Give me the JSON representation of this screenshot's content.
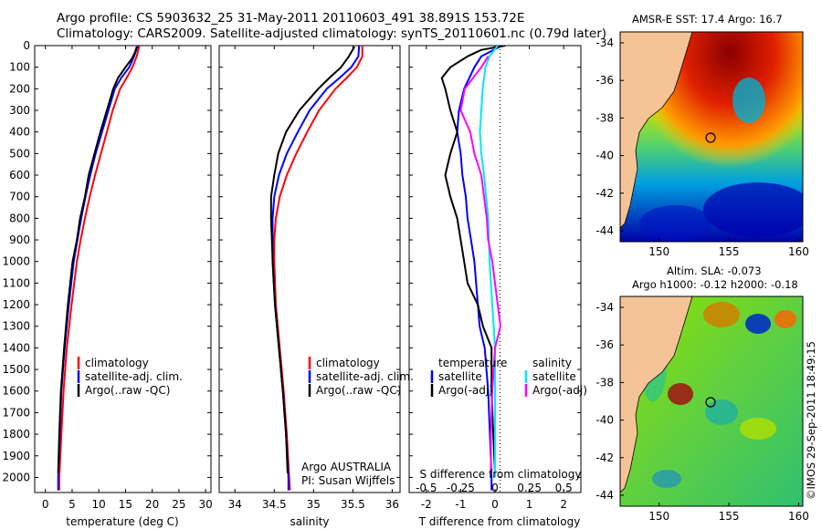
{
  "header": {
    "line1": "Argo profile: CS 5903632_25 31-May-2011 20110603_491 38.891S 153.72E",
    "line2": "Climatology: CARS2009. Satellite-adjusted climatology: synTS_20110601.nc (0.79d later)"
  },
  "map_sst": {
    "title": "AMSR-E SST: 17.4 Argo: 16.7",
    "lat_ticks": [
      "-34",
      "-36",
      "-38",
      "-40",
      "-42",
      "-44"
    ],
    "lon_ticks": [
      "150",
      "155",
      "160"
    ],
    "float_position": {
      "lon": 153.72,
      "lat": -38.891
    }
  },
  "map_sla": {
    "title1": "Altim. SLA: -0.073",
    "title2": "Argo h1000: -0.12 h2000: -0.18",
    "lat_ticks": [
      "-34",
      "-36",
      "-38",
      "-40",
      "-42",
      "-44"
    ],
    "lon_ticks": [
      "150",
      "155",
      "160"
    ],
    "float_position": {
      "lon": 153.72,
      "lat": -38.891
    }
  },
  "stamp": "©IMOS 29-Sep-2011 18:49:15",
  "colors": {
    "climatology": "#ff0000",
    "satellite": "#0000ff",
    "argo": "#000000",
    "sal_satellite": "#00e5ff",
    "sal_argo": "#ff00ff",
    "land": "#f4c396"
  },
  "chart_data": [
    {
      "type": "line",
      "xlabel": "temperature (deg C)",
      "ylabel": "",
      "xlim": [
        -2,
        31
      ],
      "ylim": [
        2070,
        0
      ],
      "xticks": [
        "0",
        "5",
        "10",
        "15",
        "20",
        "25",
        "30"
      ],
      "yticks": [
        "0",
        "100",
        "200",
        "300",
        "400",
        "500",
        "600",
        "700",
        "800",
        "900",
        "1000",
        "1100",
        "1200",
        "1300",
        "1400",
        "1500",
        "1600",
        "1700",
        "1800",
        "1900",
        "2000"
      ],
      "legend": [
        "climatology",
        "satellite-adj. clim.",
        "Argo(..raw -QC)"
      ],
      "series": [
        {
          "name": "climatology",
          "depth": [
            0,
            50,
            100,
            150,
            200,
            300,
            400,
            500,
            600,
            700,
            800,
            900,
            1000,
            1200,
            1400,
            1600,
            1800,
            2000,
            2060
          ],
          "values": [
            17.6,
            17.1,
            16.3,
            15.2,
            14.0,
            12.6,
            11.5,
            10.4,
            9.3,
            8.3,
            7.4,
            6.6,
            5.9,
            4.9,
            4.0,
            3.4,
            3.0,
            2.6,
            2.6
          ]
        },
        {
          "name": "satellite-adj. clim.",
          "depth": [
            0,
            50,
            100,
            150,
            200,
            300,
            400,
            500,
            600,
            700,
            800,
            900,
            1000,
            1200,
            1400,
            1600,
            1800,
            2000,
            2060
          ],
          "values": [
            17.3,
            16.6,
            15.7,
            14.2,
            13.0,
            11.8,
            10.6,
            9.4,
            8.4,
            7.5,
            6.7,
            6.0,
            5.3,
            4.4,
            3.6,
            3.0,
            2.7,
            2.4,
            2.4
          ]
        },
        {
          "name": "Argo(..raw -QC)",
          "depth": [
            5,
            30,
            60,
            100,
            150,
            200,
            300,
            400,
            500,
            600,
            700,
            800,
            900,
            1000,
            1200,
            1400,
            1600,
            1800,
            1980
          ],
          "values": [
            17.1,
            16.8,
            16.2,
            15.0,
            13.6,
            12.7,
            11.5,
            10.3,
            9.2,
            8.1,
            7.4,
            6.5,
            5.9,
            5.1,
            4.2,
            3.5,
            2.9,
            2.6,
            2.4
          ]
        }
      ]
    },
    {
      "type": "line",
      "xlabel": "salinity",
      "xlim": [
        33.8,
        36.1
      ],
      "ylim": [
        2070,
        0
      ],
      "xticks": [
        "34",
        "34.5",
        "35",
        "35.5",
        "36"
      ],
      "legend": [
        "climatology",
        "satellite-adj. clim.",
        "Argo(..raw -QC)"
      ],
      "annotation1": "Argo AUSTRALIA",
      "annotation2": "PI: Susan Wijffels",
      "series": [
        {
          "name": "climatology",
          "depth": [
            0,
            50,
            100,
            150,
            200,
            300,
            400,
            500,
            600,
            700,
            800,
            900,
            1000,
            1200,
            1400,
            1600,
            1800,
            2000,
            2060
          ],
          "values": [
            35.62,
            35.62,
            35.55,
            35.42,
            35.28,
            35.07,
            34.92,
            34.78,
            34.66,
            34.57,
            34.52,
            34.5,
            34.5,
            34.52,
            34.57,
            34.62,
            34.66,
            34.69,
            34.7
          ]
        },
        {
          "name": "satellite-adj. clim.",
          "depth": [
            0,
            50,
            100,
            150,
            200,
            300,
            400,
            500,
            600,
            700,
            800,
            900,
            1000,
            1200,
            1400,
            1600,
            1800,
            2000,
            2060
          ],
          "values": [
            35.58,
            35.57,
            35.48,
            35.33,
            35.17,
            34.95,
            34.8,
            34.66,
            34.56,
            34.5,
            34.48,
            34.48,
            34.48,
            34.51,
            34.56,
            34.61,
            34.65,
            34.68,
            34.68
          ]
        },
        {
          "name": "Argo(..raw -QC)",
          "depth": [
            5,
            50,
            100,
            150,
            200,
            300,
            400,
            500,
            600,
            700,
            800,
            900,
            1000,
            1200,
            1400,
            1600,
            1800,
            1980
          ],
          "values": [
            35.52,
            35.45,
            35.35,
            35.2,
            35.06,
            34.82,
            34.65,
            34.55,
            34.5,
            34.46,
            34.46,
            34.47,
            34.48,
            34.51,
            34.56,
            34.61,
            34.65,
            34.67
          ]
        }
      ]
    },
    {
      "type": "line",
      "xlabel": "T difference from climatology",
      "xlabel2": "S difference from climatology",
      "xlim": [
        -2.5,
        2.5
      ],
      "ylim": [
        2070,
        0
      ],
      "xticks": [
        "-2",
        "-1",
        "0",
        "1",
        "2"
      ],
      "xticks2": [
        "-0.5",
        "-0.25",
        "0",
        "0.25",
        "0.5"
      ],
      "legend_temp_title": "temperature",
      "legend_sal_title": "salinity",
      "legend": [
        "satellite",
        "Argo(-adj)",
        "satellite",
        "Argo(-adj)"
      ],
      "series": [
        {
          "name": "temperature satellite",
          "depth": [
            0,
            50,
            100,
            200,
            300,
            400,
            500,
            600,
            700,
            800,
            900,
            1000,
            1100,
            1200,
            1300,
            1400,
            1500,
            1600,
            1800,
            2000,
            2060
          ],
          "values": [
            0.2,
            -0.4,
            -0.6,
            -0.9,
            -1.05,
            -1.1,
            -1.0,
            -0.95,
            -0.85,
            -0.8,
            -0.7,
            -0.6,
            -0.55,
            -0.5,
            -0.45,
            -0.3,
            -0.25,
            -0.2,
            -0.15,
            -0.1,
            -0.1
          ]
        },
        {
          "name": "temperature Argo(-adj)",
          "depth": [
            0,
            20,
            50,
            100,
            150,
            200,
            300,
            400,
            500,
            600,
            700,
            800,
            900,
            1000,
            1100,
            1200,
            1300,
            1400,
            1500,
            1600,
            1800,
            1980
          ],
          "values": [
            0.3,
            -0.4,
            -0.8,
            -1.3,
            -1.55,
            -1.45,
            -1.3,
            -1.1,
            -1.3,
            -1.45,
            -1.3,
            -1.1,
            -1.0,
            -0.9,
            -0.8,
            -0.5,
            -0.35,
            -0.1,
            -0.1,
            -0.1,
            -0.05,
            0.0
          ]
        },
        {
          "name": "salinity satellite",
          "depth": [
            0,
            50,
            100,
            200,
            300,
            400,
            500,
            600,
            800,
            1000,
            1200,
            1400,
            1600,
            1800,
            2000
          ],
          "values": [
            0.02,
            -0.04,
            -0.07,
            -0.09,
            -0.1,
            -0.11,
            -0.1,
            -0.08,
            -0.05,
            -0.04,
            -0.02,
            0.0,
            0.0,
            0.0,
            0.0
          ]
        },
        {
          "name": "salinity Argo(-adj)",
          "depth": [
            50,
            100,
            200,
            300,
            400,
            500,
            600,
            700,
            800,
            900,
            1000,
            1100,
            1200,
            1300,
            1400,
            1600,
            1800,
            1980
          ],
          "values": [
            -0.05,
            -0.1,
            -0.22,
            -0.25,
            -0.18,
            -0.15,
            -0.1,
            -0.08,
            -0.06,
            -0.05,
            -0.02,
            0.0,
            0.02,
            0.04,
            0.0,
            -0.02,
            -0.03,
            -0.03
          ]
        }
      ]
    }
  ]
}
